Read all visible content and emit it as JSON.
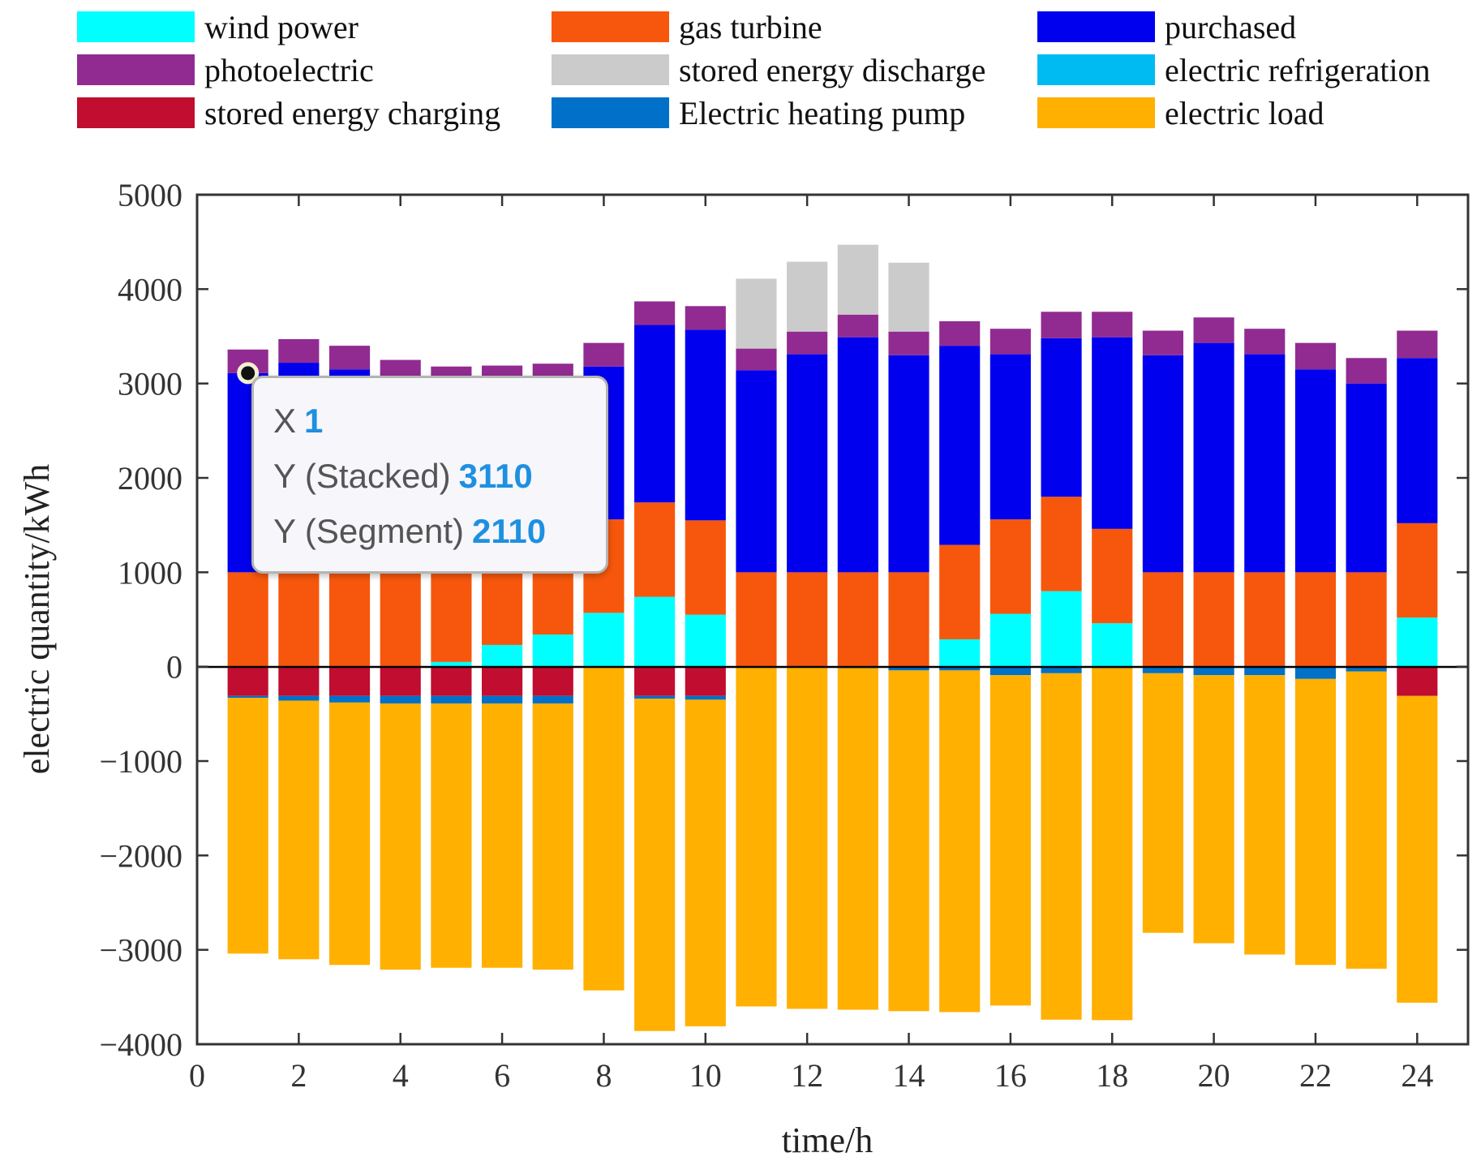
{
  "chart_data": {
    "type": "bar",
    "stacked": true,
    "xlabel": "time/h",
    "ylabel": "electric quantity/kWh",
    "xlim": [
      0,
      25
    ],
    "ylim": [
      -4000,
      5000
    ],
    "x_ticks": [
      "0",
      "2",
      "4",
      "6",
      "8",
      "10",
      "12",
      "14",
      "16",
      "18",
      "20",
      "22",
      "24"
    ],
    "y_ticks": [
      "5000",
      "4000",
      "3000",
      "2000",
      "1000",
      "0",
      "−1000",
      "−2000",
      "−3000",
      "−4000"
    ],
    "x": [
      1,
      2,
      3,
      4,
      5,
      6,
      7,
      8,
      9,
      10,
      11,
      12,
      13,
      14,
      15,
      16,
      17,
      18,
      19,
      20,
      21,
      22,
      23,
      24
    ],
    "series": [
      {
        "name": "wind power",
        "color": "#00ffff",
        "values": [
          0,
          0,
          0,
          0,
          50,
          230,
          340,
          570,
          740,
          550,
          0,
          0,
          0,
          0,
          290,
          560,
          800,
          460,
          0,
          0,
          0,
          0,
          0,
          520
        ]
      },
      {
        "name": "gas turbine",
        "color": "#f7570c",
        "values": [
          1000,
          1000,
          1000,
          1000,
          950,
          770,
          660,
          990,
          1000,
          1000,
          1000,
          1000,
          1000,
          1000,
          1000,
          1000,
          1000,
          1000,
          1000,
          1000,
          1000,
          1000,
          1000,
          1000
        ]
      },
      {
        "name": "purchased",
        "color": "#0000ee",
        "values": [
          2110,
          2220,
          2150,
          2000,
          1980,
          1990,
          2000,
          1620,
          1880,
          2020,
          2140,
          2310,
          2490,
          2300,
          2110,
          1750,
          1680,
          2030,
          2300,
          2430,
          2310,
          2150,
          2000,
          1750
        ]
      },
      {
        "name": "photoelectric",
        "color": "#912b91",
        "values": [
          250,
          250,
          250,
          250,
          200,
          200,
          210,
          250,
          250,
          250,
          230,
          240,
          240,
          250,
          260,
          270,
          280,
          270,
          260,
          270,
          270,
          280,
          270,
          290
        ]
      },
      {
        "name": "stored energy discharge",
        "color": "#cbcbcb",
        "values": [
          0,
          0,
          0,
          0,
          0,
          0,
          0,
          0,
          0,
          0,
          740,
          740,
          740,
          730,
          0,
          0,
          0,
          0,
          0,
          0,
          0,
          0,
          0,
          0
        ]
      },
      {
        "name": "stored energy charging",
        "color": "#c00d30",
        "values": [
          -310,
          -310,
          -310,
          -310,
          -310,
          -310,
          -310,
          0,
          -310,
          -310,
          0,
          0,
          0,
          0,
          0,
          0,
          0,
          0,
          0,
          0,
          0,
          0,
          0,
          -310
        ]
      },
      {
        "name": "Electric heating pump",
        "color": "#0070c8",
        "values": [
          -20,
          -50,
          -70,
          -80,
          -80,
          -80,
          -80,
          -10,
          -30,
          -40,
          -10,
          -5,
          -15,
          -40,
          -40,
          -90,
          -70,
          -15,
          -70,
          -90,
          -90,
          -130,
          -50,
          0
        ]
      },
      {
        "name": "electric refrigeration",
        "color": "#00bbf2",
        "values": [
          0,
          0,
          0,
          0,
          0,
          0,
          0,
          0,
          0,
          0,
          0,
          0,
          0,
          0,
          0,
          0,
          0,
          0,
          0,
          0,
          0,
          0,
          0,
          0
        ]
      },
      {
        "name": "electric load",
        "color": "#ffb000",
        "values": [
          -2710,
          -2740,
          -2780,
          -2820,
          -2800,
          -2800,
          -2820,
          -3420,
          -3520,
          -3460,
          -3590,
          -3620,
          -3620,
          -3610,
          -3620,
          -3500,
          -3670,
          -3730,
          -2750,
          -2840,
          -2960,
          -3030,
          -3150,
          -3250
        ]
      }
    ],
    "legend": {
      "position": "top",
      "order": [
        "wind power",
        "gas turbine",
        "purchased",
        "photoelectric",
        "stored energy discharge",
        "electric refrigeration",
        "stored energy charging",
        "Electric heating pump",
        "electric load"
      ]
    },
    "datatip": {
      "x_label": "X",
      "x_value": "1",
      "y_stacked_label": "Y (Stacked)",
      "y_stacked_value": "3110",
      "y_segment_label": "Y (Segment)",
      "y_segment_value": "2110",
      "anchor_x": 1,
      "anchor_y": 3110
    }
  }
}
